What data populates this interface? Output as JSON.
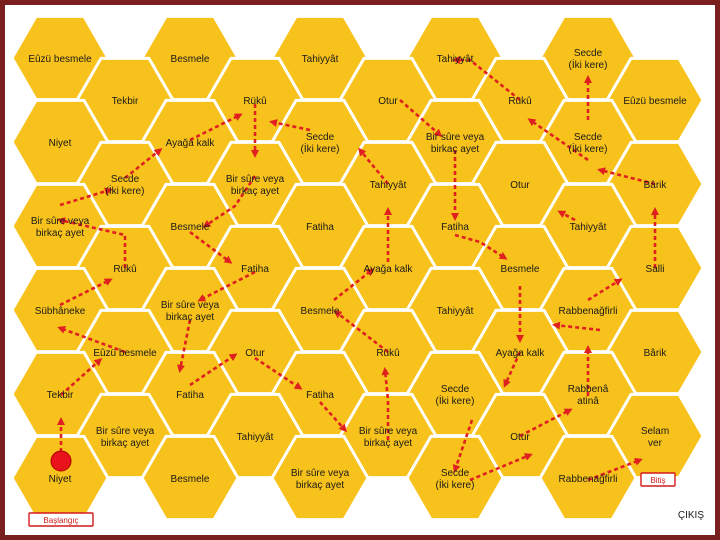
{
  "colors": {
    "hex_fill": "#f7c21b",
    "hex_stroke": "#ffffff",
    "path": "#e02020",
    "frame": "#7a1f1f"
  },
  "cells": [
    {
      "id": "c01",
      "lines": [
        "Eûzü besmele"
      ]
    },
    {
      "id": "c02",
      "lines": [
        "Besmele"
      ]
    },
    {
      "id": "c03",
      "lines": [
        "Tahiyyât"
      ]
    },
    {
      "id": "c04",
      "lines": [
        "Tahiyyât"
      ]
    },
    {
      "id": "c05",
      "lines": [
        "Secde",
        "(İki kere)"
      ]
    },
    {
      "id": "c06",
      "lines": [
        "Tekbir"
      ]
    },
    {
      "id": "c07",
      "lines": [
        "Rükû"
      ]
    },
    {
      "id": "c08",
      "lines": [
        "Otur"
      ]
    },
    {
      "id": "c09",
      "lines": [
        "Rükû"
      ]
    },
    {
      "id": "c10",
      "lines": [
        "Eûzü besmele"
      ]
    },
    {
      "id": "c11",
      "lines": [
        "Niyet"
      ]
    },
    {
      "id": "c12",
      "lines": [
        "Ayağa kalk"
      ]
    },
    {
      "id": "c13",
      "lines": [
        "Secde",
        "(İki kere)"
      ]
    },
    {
      "id": "c14",
      "lines": [
        "Bir sûre veya",
        "birkaç ayet"
      ]
    },
    {
      "id": "c15",
      "lines": [
        "Secde",
        "(İki kere)"
      ]
    },
    {
      "id": "c16",
      "lines": [
        "Secde",
        "(İki kere)"
      ]
    },
    {
      "id": "c17",
      "lines": [
        "Bir sûre veya",
        "birkaç ayet"
      ]
    },
    {
      "id": "c18",
      "lines": [
        "Tahiyyât"
      ]
    },
    {
      "id": "c19",
      "lines": [
        "Otur"
      ]
    },
    {
      "id": "c20",
      "lines": [
        "Bârik"
      ]
    },
    {
      "id": "c21",
      "lines": [
        "Bir sûre veya",
        "birkaç ayet"
      ]
    },
    {
      "id": "c22",
      "lines": [
        "Besmele"
      ]
    },
    {
      "id": "c23",
      "lines": [
        "Fatiha"
      ]
    },
    {
      "id": "c24",
      "lines": [
        "Fatiha"
      ]
    },
    {
      "id": "c25",
      "lines": [
        "Tahiyyât"
      ]
    },
    {
      "id": "c26",
      "lines": [
        "Rükû"
      ]
    },
    {
      "id": "c27",
      "lines": [
        "Fatiha"
      ]
    },
    {
      "id": "c28",
      "lines": [
        "Ayağa kalk"
      ]
    },
    {
      "id": "c29",
      "lines": [
        "Besmele"
      ]
    },
    {
      "id": "c30",
      "lines": [
        "Salli"
      ]
    },
    {
      "id": "c31",
      "lines": [
        "Sübhâneke"
      ]
    },
    {
      "id": "c32",
      "lines": [
        "Bir sûre veya",
        "birkaç ayet"
      ]
    },
    {
      "id": "c33",
      "lines": [
        "Besmele"
      ]
    },
    {
      "id": "c34",
      "lines": [
        "Tahiyyât"
      ]
    },
    {
      "id": "c35",
      "lines": [
        "Rabbenağfirli"
      ]
    },
    {
      "id": "c36",
      "lines": [
        "Eûzü besmele"
      ]
    },
    {
      "id": "c37",
      "lines": [
        "Otur"
      ]
    },
    {
      "id": "c38",
      "lines": [
        "Rükû"
      ]
    },
    {
      "id": "c39",
      "lines": [
        "Ayağa kalk"
      ]
    },
    {
      "id": "c40",
      "lines": [
        "Bârik"
      ]
    },
    {
      "id": "c41",
      "lines": [
        "Tekbir"
      ]
    },
    {
      "id": "c42",
      "lines": [
        "Fatiha"
      ]
    },
    {
      "id": "c43",
      "lines": [
        "Fatiha"
      ]
    },
    {
      "id": "c44",
      "lines": [
        "Secde",
        "(İki kere)"
      ]
    },
    {
      "id": "c45",
      "lines": [
        "Rabbenâ",
        "atinâ"
      ]
    },
    {
      "id": "c46",
      "lines": [
        "Bir sûre veya",
        "birkaç ayet"
      ]
    },
    {
      "id": "c47",
      "lines": [
        "Tahiyyât"
      ]
    },
    {
      "id": "c48",
      "lines": [
        "Bir sûre veya",
        "birkaç ayet"
      ]
    },
    {
      "id": "c49",
      "lines": [
        "Otur"
      ]
    },
    {
      "id": "c50",
      "lines": [
        "Selam",
        "ver"
      ]
    },
    {
      "id": "c51",
      "lines": [
        "Niyet"
      ]
    },
    {
      "id": "c52",
      "lines": [
        "Besmele"
      ]
    },
    {
      "id": "c53",
      "lines": [
        "Bir sûre veya",
        "birkaç ayet"
      ]
    },
    {
      "id": "c54",
      "lines": [
        "Secde",
        "(İki kere)"
      ]
    },
    {
      "id": "c55",
      "lines": [
        "Rabbenağfirli"
      ]
    }
  ],
  "start_label": "Başlangıç",
  "end_label": "Bitiş",
  "exit_label": "ÇIKIŞ"
}
